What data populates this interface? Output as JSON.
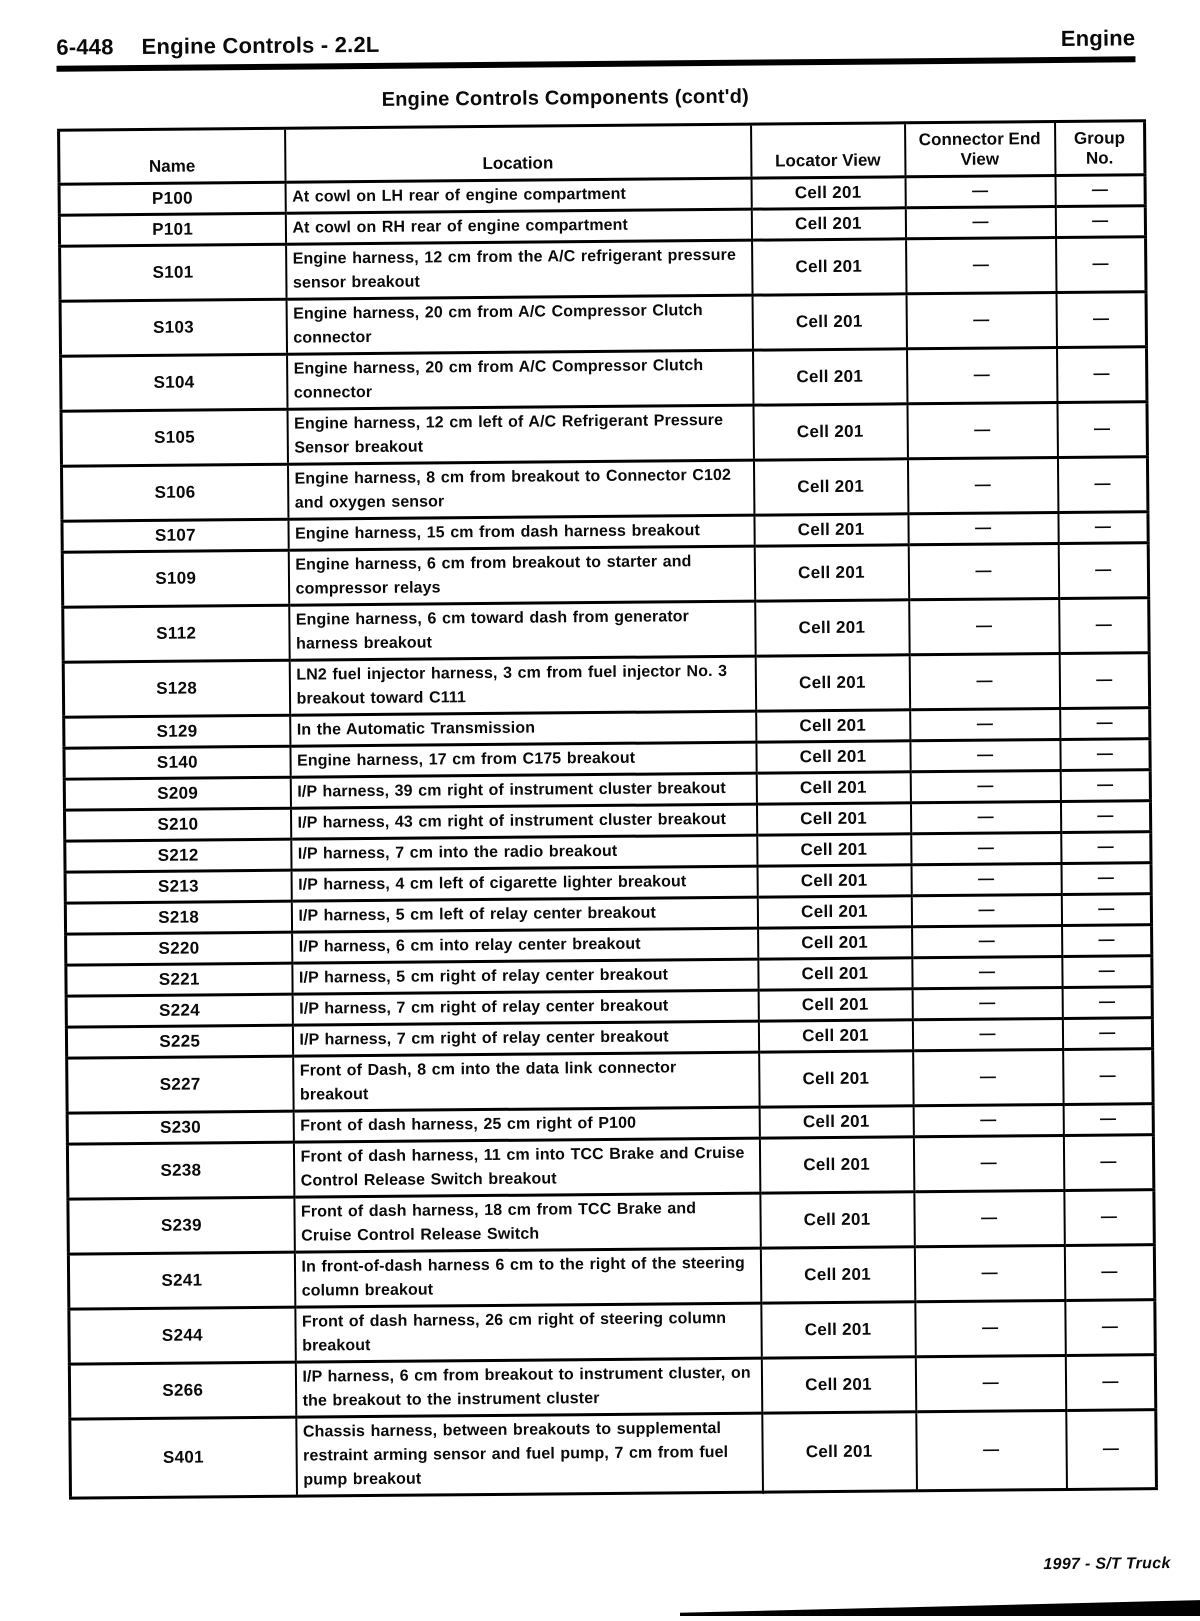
{
  "page_header": {
    "page_number": "6-448",
    "section_title": "Engine Controls - 2.2L",
    "right_label": "Engine"
  },
  "table_title": "Engine Controls Components (cont'd)",
  "table": {
    "columns": [
      "Name",
      "Location",
      "Locator View",
      "Connector End View",
      "Group No."
    ],
    "rows": [
      {
        "name": "P100",
        "location": "At cowl on LH rear of engine compartment",
        "locator_view": "Cell 201",
        "connector_end_view": "—",
        "group_no": "—"
      },
      {
        "name": "P101",
        "location": "At cowl on RH rear of engine compartment",
        "locator_view": "Cell 201",
        "connector_end_view": "—",
        "group_no": "—"
      },
      {
        "name": "S101",
        "location": "Engine harness, 12 cm from the A/C refrigerant pressure sensor breakout",
        "locator_view": "Cell 201",
        "connector_end_view": "—",
        "group_no": "—"
      },
      {
        "name": "S103",
        "location": "Engine harness, 20 cm from A/C Compressor Clutch connector",
        "locator_view": "Cell 201",
        "connector_end_view": "—",
        "group_no": "—"
      },
      {
        "name": "S104",
        "location": "Engine harness, 20 cm from A/C Compressor Clutch connector",
        "locator_view": "Cell 201",
        "connector_end_view": "—",
        "group_no": "—"
      },
      {
        "name": "S105",
        "location": "Engine harness, 12 cm left of A/C Refrigerant Pressure Sensor breakout",
        "locator_view": "Cell 201",
        "connector_end_view": "—",
        "group_no": "—"
      },
      {
        "name": "S106",
        "location": "Engine harness, 8 cm from breakout to Connector C102 and oxygen sensor",
        "locator_view": "Cell 201",
        "connector_end_view": "—",
        "group_no": "—"
      },
      {
        "name": "S107",
        "location": "Engine harness, 15 cm from dash harness breakout",
        "locator_view": "Cell 201",
        "connector_end_view": "—",
        "group_no": "—"
      },
      {
        "name": "S109",
        "location": "Engine harness, 6 cm from breakout to starter and compressor relays",
        "locator_view": "Cell 201",
        "connector_end_view": "—",
        "group_no": "—"
      },
      {
        "name": "S112",
        "location": "Engine harness, 6 cm toward dash from generator harness breakout",
        "locator_view": "Cell 201",
        "connector_end_view": "—",
        "group_no": "—"
      },
      {
        "name": "S128",
        "location": "LN2 fuel injector harness, 3 cm from fuel injector No. 3 breakout toward C111",
        "locator_view": "Cell 201",
        "connector_end_view": "—",
        "group_no": "—"
      },
      {
        "name": "S129",
        "location": "In the Automatic Transmission",
        "locator_view": "Cell 201",
        "connector_end_view": "—",
        "group_no": "—"
      },
      {
        "name": "S140",
        "location": "Engine harness, 17 cm from C175 breakout",
        "locator_view": "Cell 201",
        "connector_end_view": "—",
        "group_no": "—"
      },
      {
        "name": "S209",
        "location": "I/P harness, 39 cm right of instrument cluster breakout",
        "locator_view": "Cell 201",
        "connector_end_view": "—",
        "group_no": "—"
      },
      {
        "name": "S210",
        "location": "I/P harness, 43 cm right of instrument cluster breakout",
        "locator_view": "Cell 201",
        "connector_end_view": "—",
        "group_no": "—"
      },
      {
        "name": "S212",
        "location": "I/P harness, 7 cm into the radio breakout",
        "locator_view": "Cell 201",
        "connector_end_view": "—",
        "group_no": "—"
      },
      {
        "name": "S213",
        "location": "I/P harness, 4 cm left of cigarette lighter breakout",
        "locator_view": "Cell 201",
        "connector_end_view": "—",
        "group_no": "—"
      },
      {
        "name": "S218",
        "location": "I/P harness, 5 cm left of relay center breakout",
        "locator_view": "Cell 201",
        "connector_end_view": "—",
        "group_no": "—"
      },
      {
        "name": "S220",
        "location": "I/P harness, 6 cm into relay center breakout",
        "locator_view": "Cell 201",
        "connector_end_view": "—",
        "group_no": "—"
      },
      {
        "name": "S221",
        "location": "I/P harness, 5 cm right of relay center breakout",
        "locator_view": "Cell 201",
        "connector_end_view": "—",
        "group_no": "—"
      },
      {
        "name": "S224",
        "location": "I/P harness, 7 cm right of relay center breakout",
        "locator_view": "Cell 201",
        "connector_end_view": "—",
        "group_no": "—"
      },
      {
        "name": "S225",
        "location": "I/P harness, 7 cm right of relay center breakout",
        "locator_view": "Cell 201",
        "connector_end_view": "—",
        "group_no": "—"
      },
      {
        "name": "S227",
        "location": "Front of Dash, 8 cm into the data link connector breakout",
        "locator_view": "Cell 201",
        "connector_end_view": "—",
        "group_no": "—"
      },
      {
        "name": "S230",
        "location": "Front of dash harness, 25 cm right of P100",
        "locator_view": "Cell 201",
        "connector_end_view": "—",
        "group_no": "—"
      },
      {
        "name": "S238",
        "location": "Front of dash harness, 11 cm into TCC Brake and Cruise Control Release Switch breakout",
        "locator_view": "Cell 201",
        "connector_end_view": "—",
        "group_no": "—"
      },
      {
        "name": "S239",
        "location": "Front of dash harness, 18 cm from TCC Brake and Cruise Control Release Switch",
        "locator_view": "Cell 201",
        "connector_end_view": "—",
        "group_no": "—"
      },
      {
        "name": "S241",
        "location": "In front-of-dash harness 6 cm to the right of the steering column breakout",
        "locator_view": "Cell 201",
        "connector_end_view": "—",
        "group_no": "—"
      },
      {
        "name": "S244",
        "location": "Front of dash harness, 26 cm right of steering column breakout",
        "locator_view": "Cell 201",
        "connector_end_view": "—",
        "group_no": "—"
      },
      {
        "name": "S266",
        "location": "I/P harness, 6 cm from breakout to instrument cluster, on the breakout to the instrument cluster",
        "locator_view": "Cell 201",
        "connector_end_view": "—",
        "group_no": "—"
      },
      {
        "name": "S401",
        "location": "Chassis harness, between breakouts to supplemental restraint arming sensor and fuel pump, 7 cm from fuel pump breakout",
        "locator_view": "Cell 201",
        "connector_end_view": "—",
        "group_no": "—"
      }
    ]
  },
  "footer": {
    "note": "1997 - S/T Truck"
  }
}
